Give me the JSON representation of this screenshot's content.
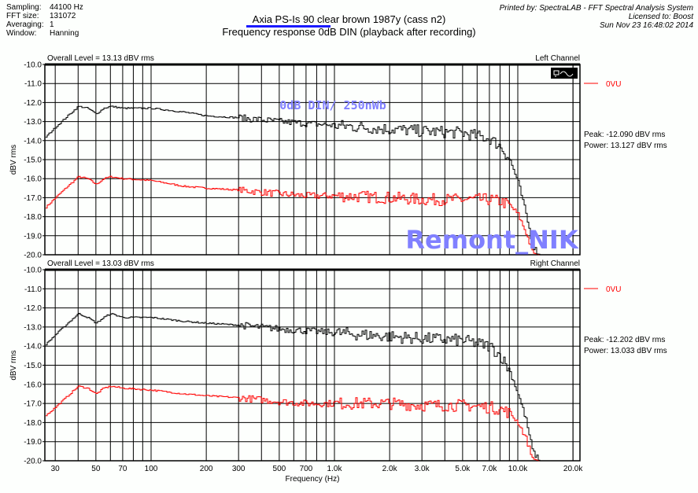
{
  "header": {
    "info": [
      {
        "label": "Sampling:",
        "value": "44100 Hz"
      },
      {
        "label": "FFT size:",
        "value": "131072"
      },
      {
        "label": "Averaging:",
        "value": "1"
      },
      {
        "label": "Window:",
        "value": "Hanning"
      }
    ],
    "title": "Axia PS-Is 90 clear brown 1987y (cass n2)",
    "subtitle": "Frequency response 0dB DIN (playback after recording)",
    "printed_by": "Printed by: SpectraLAB - FFT Spectral Analysis System",
    "licensed": "Licensed to: Boost",
    "date": "Sun Nov 23 16:48:02 2014"
  },
  "watermarks": {
    "annotation": "0dB DIN/ 250nWb",
    "author": "Remont_NIK"
  },
  "colors": {
    "main": "#000000",
    "ref": "#ff0000",
    "watermark": "#8080ff"
  },
  "chart_data": [
    {
      "type": "line",
      "title": "Left Channel",
      "overall": "Overall Level = 13.13 dBV rms",
      "ylabel": "dBV rms",
      "xlabel": "Frequency (Hz)",
      "xscale": "log",
      "xlim": [
        26,
        22000
      ],
      "ylim": [
        -20,
        -10
      ],
      "yticks": [
        "-10.0",
        "-11.0",
        "-12.0",
        "-13.0",
        "-14.0",
        "-15.0",
        "-16.0",
        "-17.0",
        "-18.0",
        "-19.0",
        "-20.0"
      ],
      "legend": "0VU",
      "peak": "Peak: -12.090 dBV rms",
      "power": "Power: 13.127 dBV rms",
      "series": [
        {
          "name": "measured",
          "x": [
            26,
            30,
            35,
            40,
            45,
            50,
            55,
            60,
            70,
            100,
            150,
            200,
            300,
            500,
            700,
            1000,
            2000,
            3000,
            5000,
            7000,
            8000,
            9000,
            10000,
            11000,
            12000,
            13000,
            22000
          ],
          "y": [
            -13.9,
            -13.3,
            -12.7,
            -12.2,
            -12.3,
            -12.6,
            -12.3,
            -12.2,
            -12.3,
            -12.3,
            -12.5,
            -12.7,
            -12.8,
            -13.0,
            -13.1,
            -13.2,
            -13.4,
            -13.5,
            -13.6,
            -13.9,
            -14.3,
            -15.0,
            -16.2,
            -17.8,
            -19.5,
            -20.0,
            -20.0
          ]
        },
        {
          "name": "0VU",
          "x": [
            26,
            30,
            35,
            40,
            45,
            50,
            55,
            60,
            70,
            100,
            150,
            200,
            300,
            500,
            700,
            1000,
            2000,
            3000,
            5000,
            7000,
            8000,
            9000,
            10000,
            11000,
            12000,
            13000,
            22000
          ],
          "y": [
            -17.6,
            -17.0,
            -16.4,
            -15.9,
            -16.0,
            -16.3,
            -16.0,
            -15.9,
            -16.0,
            -16.1,
            -16.4,
            -16.5,
            -16.6,
            -16.8,
            -16.9,
            -16.9,
            -17.0,
            -17.1,
            -17.1,
            -17.1,
            -17.2,
            -17.4,
            -17.9,
            -18.8,
            -19.9,
            -20.0,
            -20.0
          ]
        }
      ]
    },
    {
      "type": "line",
      "title": "Right Channel",
      "overall": "Overall Level = 13.03 dBV rms",
      "ylabel": "dBV rms",
      "xlabel": "Frequency (Hz)",
      "xscale": "log",
      "xlim": [
        26,
        22000
      ],
      "ylim": [
        -20,
        -10
      ],
      "yticks": [
        "-10.0",
        "-11.0",
        "-12.0",
        "-13.0",
        "-14.0",
        "-15.0",
        "-16.0",
        "-17.0",
        "-18.0",
        "-19.0",
        "-20.0"
      ],
      "legend": "0VU",
      "peak": "Peak: -12.202 dBV rms",
      "power": "Power: 13.033 dBV rms",
      "series": [
        {
          "name": "measured",
          "x": [
            26,
            30,
            35,
            40,
            45,
            50,
            55,
            60,
            70,
            100,
            150,
            200,
            300,
            500,
            700,
            1000,
            2000,
            3000,
            5000,
            7000,
            8000,
            9000,
            10000,
            11000,
            12000,
            13000,
            22000
          ],
          "y": [
            -14.0,
            -13.4,
            -12.8,
            -12.3,
            -12.5,
            -12.8,
            -12.5,
            -12.3,
            -12.5,
            -12.5,
            -12.7,
            -12.8,
            -12.9,
            -13.1,
            -13.2,
            -13.3,
            -13.5,
            -13.6,
            -13.7,
            -14.0,
            -14.5,
            -15.3,
            -16.5,
            -17.8,
            -19.5,
            -20.0,
            -20.0
          ]
        },
        {
          "name": "0VU",
          "x": [
            26,
            30,
            35,
            40,
            45,
            50,
            55,
            60,
            70,
            100,
            150,
            200,
            300,
            500,
            700,
            1000,
            2000,
            3000,
            5000,
            7000,
            8000,
            9000,
            10000,
            11000,
            12000,
            13000,
            22000
          ],
          "y": [
            -17.7,
            -17.2,
            -16.6,
            -16.1,
            -16.2,
            -16.5,
            -16.2,
            -16.1,
            -16.2,
            -16.3,
            -16.5,
            -16.6,
            -16.7,
            -16.9,
            -17.0,
            -17.0,
            -17.0,
            -17.1,
            -17.1,
            -17.2,
            -17.3,
            -17.5,
            -18.0,
            -18.8,
            -19.9,
            -20.0,
            -20.0
          ]
        }
      ]
    }
  ],
  "xticks": [
    {
      "f": 30,
      "label": "30"
    },
    {
      "f": 50,
      "label": "50"
    },
    {
      "f": 70,
      "label": "70"
    },
    {
      "f": 100,
      "label": "100"
    },
    {
      "f": 200,
      "label": "200"
    },
    {
      "f": 300,
      "label": "300"
    },
    {
      "f": 500,
      "label": "500"
    },
    {
      "f": 700,
      "label": "700"
    },
    {
      "f": 1000,
      "label": "1.0k"
    },
    {
      "f": 2000,
      "label": "2.0k"
    },
    {
      "f": 3000,
      "label": "3.0k"
    },
    {
      "f": 5000,
      "label": "5.0k"
    },
    {
      "f": 7000,
      "label": "7.0k"
    },
    {
      "f": 10000,
      "label": "10.0k"
    },
    {
      "f": 20000,
      "label": "20.0k"
    }
  ]
}
